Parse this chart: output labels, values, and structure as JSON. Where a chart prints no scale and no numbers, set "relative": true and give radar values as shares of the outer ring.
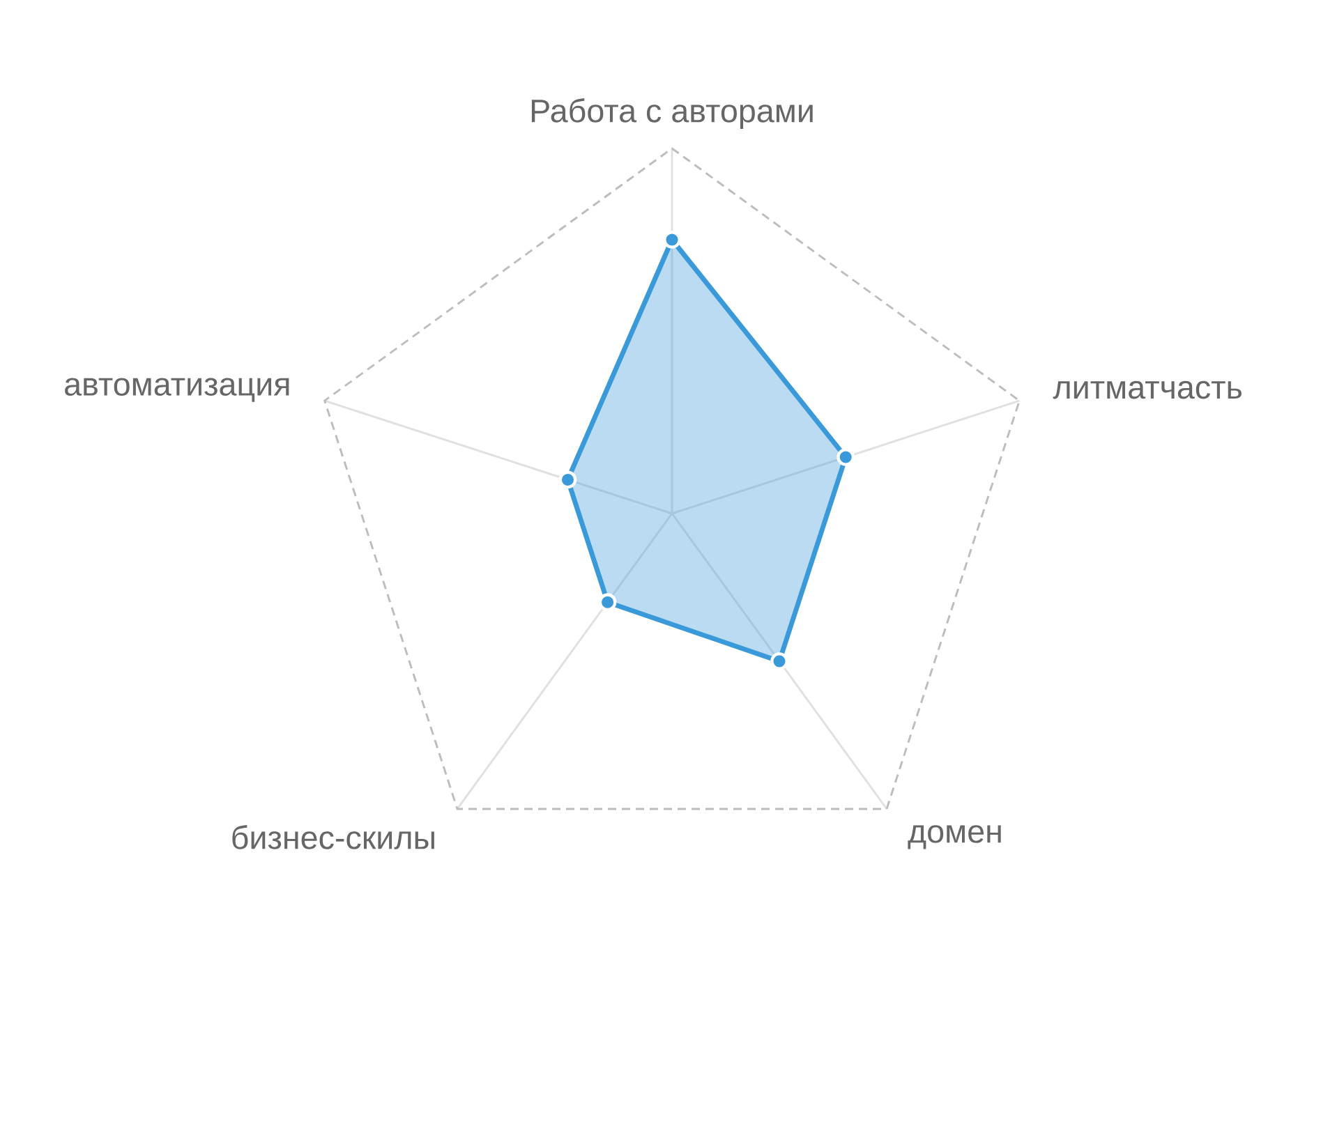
{
  "chart_data": {
    "type": "radar",
    "categories": [
      "Работа с авторами",
      "литматчасть",
      "домен",
      "бизнес-скилы",
      "автоматизация"
    ],
    "series": [
      {
        "color": "#3a99d9",
        "values": [
          0.75,
          0.5,
          0.5,
          0.3,
          0.3
        ]
      }
    ],
    "relative": true,
    "grid": true,
    "marker": "circle",
    "line_style": "solid"
  }
}
